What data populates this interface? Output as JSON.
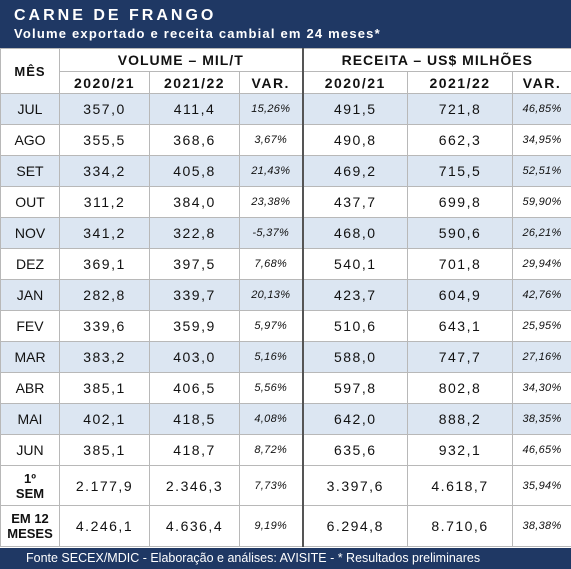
{
  "header": {
    "title": "CARNE DE FRANGO",
    "subtitle": "Volume exportado e receita cambial em 24 meses*"
  },
  "columns": {
    "month": "MÊS",
    "volume_group": "VOLUME – MIL/T",
    "receita_group": "RECEITA – US$ MILHÕES",
    "y1": "2020/21",
    "y2": "2021/22",
    "var": "VAR."
  },
  "rows": [
    {
      "month": "JUL",
      "vol1": "357,0",
      "vol2": "411,4",
      "vvar": "15,26%",
      "rec1": "491,5",
      "rec2": "721,8",
      "rvar": "46,85%"
    },
    {
      "month": "AGO",
      "vol1": "355,5",
      "vol2": "368,6",
      "vvar": "3,67%",
      "rec1": "490,8",
      "rec2": "662,3",
      "rvar": "34,95%"
    },
    {
      "month": "SET",
      "vol1": "334,2",
      "vol2": "405,8",
      "vvar": "21,43%",
      "rec1": "469,2",
      "rec2": "715,5",
      "rvar": "52,51%"
    },
    {
      "month": "OUT",
      "vol1": "311,2",
      "vol2": "384,0",
      "vvar": "23,38%",
      "rec1": "437,7",
      "rec2": "699,8",
      "rvar": "59,90%"
    },
    {
      "month": "NOV",
      "vol1": "341,2",
      "vol2": "322,8",
      "vvar": "-5,37%",
      "rec1": "468,0",
      "rec2": "590,6",
      "rvar": "26,21%"
    },
    {
      "month": "DEZ",
      "vol1": "369,1",
      "vol2": "397,5",
      "vvar": "7,68%",
      "rec1": "540,1",
      "rec2": "701,8",
      "rvar": "29,94%"
    },
    {
      "month": "JAN",
      "vol1": "282,8",
      "vol2": "339,7",
      "vvar": "20,13%",
      "rec1": "423,7",
      "rec2": "604,9",
      "rvar": "42,76%"
    },
    {
      "month": "FEV",
      "vol1": "339,6",
      "vol2": "359,9",
      "vvar": "5,97%",
      "rec1": "510,6",
      "rec2": "643,1",
      "rvar": "25,95%"
    },
    {
      "month": "MAR",
      "vol1": "383,2",
      "vol2": "403,0",
      "vvar": "5,16%",
      "rec1": "588,0",
      "rec2": "747,7",
      "rvar": "27,16%"
    },
    {
      "month": "ABR",
      "vol1": "385,1",
      "vol2": "406,5",
      "vvar": "5,56%",
      "rec1": "597,8",
      "rec2": "802,8",
      "rvar": "34,30%"
    },
    {
      "month": "MAI",
      "vol1": "402,1",
      "vol2": "418,5",
      "vvar": "4,08%",
      "rec1": "642,0",
      "rec2": "888,2",
      "rvar": "38,35%"
    },
    {
      "month": "JUN",
      "vol1": "385,1",
      "vol2": "418,7",
      "vvar": "8,72%",
      "rec1": "635,6",
      "rec2": "932,1",
      "rvar": "46,65%"
    }
  ],
  "semester": {
    "label_top": "1º",
    "label_bottom": "SEM",
    "vol1": "2.177,9",
    "vol2": "2.346,3",
    "vvar": "7,73%",
    "rec1": "3.397,6",
    "rec2": "4.618,7",
    "rvar": "35,94%"
  },
  "twelve": {
    "label_top": "EM 12",
    "label_bottom": "MESES",
    "vol1": "4.246,1",
    "vol2": "4.636,4",
    "vvar": "9,19%",
    "rec1": "6.294,8",
    "rec2": "8.710,6",
    "rvar": "38,38%"
  },
  "footer": "Fonte SECEX/MDIC  -  Elaboração e análises: AVISITE - * Resultados preliminares",
  "colors": {
    "header_bg": "#1f3864",
    "row_alt": "#dce6f2",
    "header_text": "#ffffff"
  }
}
